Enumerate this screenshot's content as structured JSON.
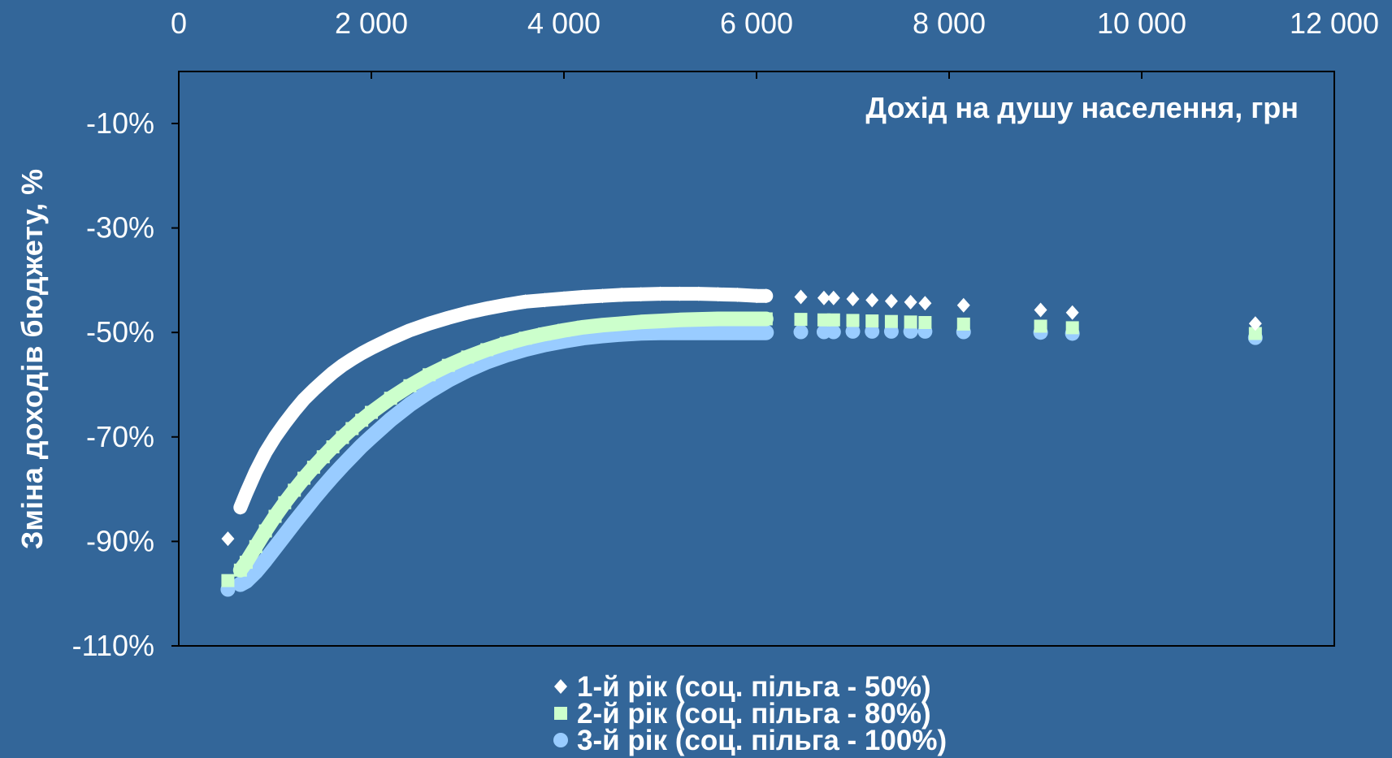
{
  "chart_data": {
    "type": "scatter",
    "title": "",
    "xlabel": "Дохід на душу населення, грн",
    "ylabel": "Зміна доходів бюджету, %",
    "x_axis_position": "top",
    "xlim": [
      0,
      12000
    ],
    "ylim": [
      -110,
      0
    ],
    "x_ticks": [
      0,
      2000,
      4000,
      6000,
      8000,
      10000,
      12000
    ],
    "x_tick_labels": [
      "0",
      "2 000",
      "4 000",
      "6 000",
      "8 000",
      "10 000",
      "12 000"
    ],
    "y_ticks": [
      -10,
      -30,
      -50,
      -70,
      -90,
      -110
    ],
    "y_tick_labels": [
      "-10%",
      "-30%",
      "-50%",
      "-70%",
      "-90%",
      "-110%"
    ],
    "grid": false,
    "legend_position": "bottom-center",
    "colors": {
      "background": "#336699",
      "text": "#ffffff",
      "frame": "#000000"
    },
    "series": [
      {
        "name": "1-й рік (соц. пільга - 50%)",
        "marker": "diamond",
        "color": "#ffffff",
        "x": [
          510,
          640,
          700,
          800,
          900,
          1000,
          1100,
          1200,
          1300,
          1400,
          1500,
          1600,
          1700,
          1800,
          1900,
          2000,
          2200,
          2400,
          2600,
          2800,
          3000,
          3200,
          3400,
          3600,
          3800,
          4000,
          4200,
          4400,
          4600,
          4800,
          5000,
          5200,
          5400,
          5600,
          5800,
          6000,
          6100,
          6460,
          6700,
          6800,
          7000,
          7200,
          7400,
          7600,
          7750,
          8150,
          8950,
          9280,
          11180
        ],
        "y": [
          -89.5,
          -83.5,
          -80.8,
          -76.6,
          -73.0,
          -70.0,
          -67.4,
          -65.0,
          -62.8,
          -61.0,
          -59.3,
          -57.7,
          -56.3,
          -55.1,
          -54.0,
          -53.0,
          -51.2,
          -49.6,
          -48.3,
          -47.2,
          -46.2,
          -45.4,
          -44.7,
          -44.1,
          -43.8,
          -43.5,
          -43.2,
          -43.0,
          -42.8,
          -42.7,
          -42.6,
          -42.6,
          -42.6,
          -42.7,
          -42.8,
          -43.0,
          -43.0,
          -43.2,
          -43.4,
          -43.4,
          -43.6,
          -43.8,
          -44.0,
          -44.2,
          -44.4,
          -44.8,
          -45.7,
          -46.2,
          -48.3
        ]
      },
      {
        "name": "2-й рік (соц. пільга - 80%)",
        "marker": "square",
        "color": "#ccffcc",
        "x": [
          510,
          640,
          700,
          800,
          900,
          1000,
          1100,
          1200,
          1300,
          1400,
          1500,
          1600,
          1700,
          1800,
          1900,
          2000,
          2200,
          2400,
          2600,
          2800,
          3000,
          3200,
          3400,
          3600,
          3800,
          4000,
          4200,
          4400,
          4600,
          4800,
          5000,
          5200,
          5400,
          5600,
          5800,
          6000,
          6100,
          6460,
          6700,
          6800,
          7000,
          7200,
          7400,
          7600,
          7750,
          8150,
          8950,
          9280,
          11180
        ],
        "y": [
          -97.5,
          -95.5,
          -94.0,
          -91.0,
          -88.0,
          -85.2,
          -82.6,
          -80.2,
          -77.9,
          -75.8,
          -73.8,
          -71.9,
          -70.1,
          -68.4,
          -66.8,
          -65.3,
          -62.6,
          -60.2,
          -58.1,
          -56.3,
          -54.7,
          -53.3,
          -52.1,
          -51.1,
          -50.3,
          -49.6,
          -49.0,
          -48.6,
          -48.3,
          -48.0,
          -47.8,
          -47.6,
          -47.5,
          -47.4,
          -47.4,
          -47.4,
          -47.4,
          -47.5,
          -47.6,
          -47.6,
          -47.7,
          -47.8,
          -47.9,
          -48.0,
          -48.1,
          -48.4,
          -48.8,
          -49.1,
          -50.2
        ]
      },
      {
        "name": "3-й рік (соц. пільга - 100%)",
        "marker": "circle",
        "color": "#99ccff",
        "x": [
          510,
          640,
          700,
          800,
          900,
          1000,
          1100,
          1200,
          1300,
          1400,
          1500,
          1600,
          1700,
          1800,
          1900,
          2000,
          2200,
          2400,
          2600,
          2800,
          3000,
          3200,
          3400,
          3600,
          3800,
          4000,
          4200,
          4400,
          4600,
          4800,
          5000,
          5200,
          5400,
          5600,
          5800,
          6000,
          6100,
          6460,
          6700,
          6800,
          7000,
          7200,
          7400,
          7600,
          7750,
          8150,
          8950,
          9280,
          11180
        ],
        "y": [
          -99.2,
          -98.2,
          -97.6,
          -95.8,
          -93.6,
          -91.2,
          -88.8,
          -86.4,
          -84.1,
          -81.8,
          -79.6,
          -77.5,
          -75.5,
          -73.6,
          -71.7,
          -70.0,
          -66.7,
          -63.8,
          -61.3,
          -59.1,
          -57.2,
          -55.6,
          -54.3,
          -53.2,
          -52.3,
          -51.6,
          -51.0,
          -50.6,
          -50.3,
          -50.1,
          -50.0,
          -50.0,
          -50.0,
          -50.0,
          -50.0,
          -50.0,
          -50.0,
          -49.9,
          -49.9,
          -49.9,
          -49.8,
          -49.8,
          -49.8,
          -49.8,
          -49.8,
          -49.9,
          -50.0,
          -50.2,
          -51.0
        ]
      }
    ]
  }
}
